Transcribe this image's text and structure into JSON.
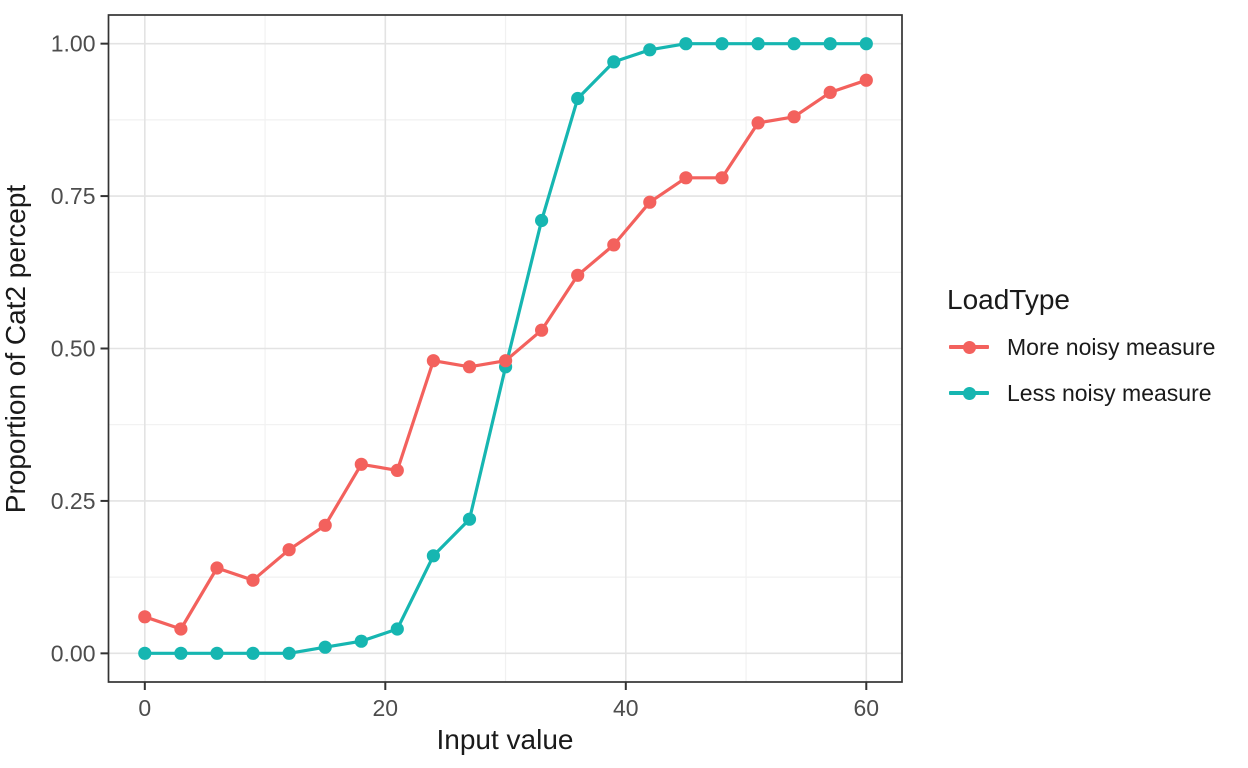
{
  "chart_data": {
    "type": "line",
    "title": "",
    "xlabel": "Input value",
    "ylabel": "Proportion of Cat2 percept",
    "legend_title": "LoadType",
    "legend_position": "right",
    "grid": "major+minor",
    "marker": "circle",
    "x": [
      0,
      3,
      6,
      9,
      12,
      15,
      18,
      21,
      24,
      27,
      30,
      33,
      36,
      39,
      42,
      45,
      48,
      51,
      54,
      57,
      60
    ],
    "series": [
      {
        "name": "More noisy measure",
        "color": "#f3615d",
        "values": [
          0.06,
          0.04,
          0.14,
          0.12,
          0.17,
          0.21,
          0.31,
          0.3,
          0.48,
          0.47,
          0.48,
          0.53,
          0.62,
          0.67,
          0.74,
          0.78,
          0.78,
          0.87,
          0.88,
          0.92,
          0.94
        ]
      },
      {
        "name": "Less noisy measure",
        "color": "#16b6b1",
        "values": [
          0.0,
          0.0,
          0.0,
          0.0,
          0.0,
          0.01,
          0.02,
          0.04,
          0.16,
          0.22,
          0.47,
          0.71,
          0.91,
          0.97,
          0.99,
          1.0,
          1.0,
          1.0,
          1.0,
          1.0,
          1.0
        ]
      }
    ],
    "x_ticks": [
      0,
      20,
      40,
      60
    ],
    "x_tick_labels": [
      "0",
      "20",
      "40",
      "60"
    ],
    "x_minor_ticks": [
      10,
      30,
      50
    ],
    "y_ticks": [
      0,
      0.25,
      0.5,
      0.75,
      1
    ],
    "y_tick_labels": [
      "0.00",
      "0.25",
      "0.50",
      "0.75",
      "1.00"
    ],
    "y_minor_ticks": [
      0.125,
      0.375,
      0.625,
      0.875
    ],
    "xlim": [
      -3.02,
      62.97
    ],
    "ylim": [
      -0.047,
      1.047
    ]
  },
  "style": {
    "background": "#ffffff",
    "panel_background": "#ffffff",
    "grid_major_color": "#e3e3e3",
    "grid_minor_color": "#f1f1f1",
    "panel_border_color": "#333333",
    "tick_mark_color": "#333333",
    "tick_label_color": "#4d4d4d",
    "title_color": "#1a1a1a"
  }
}
